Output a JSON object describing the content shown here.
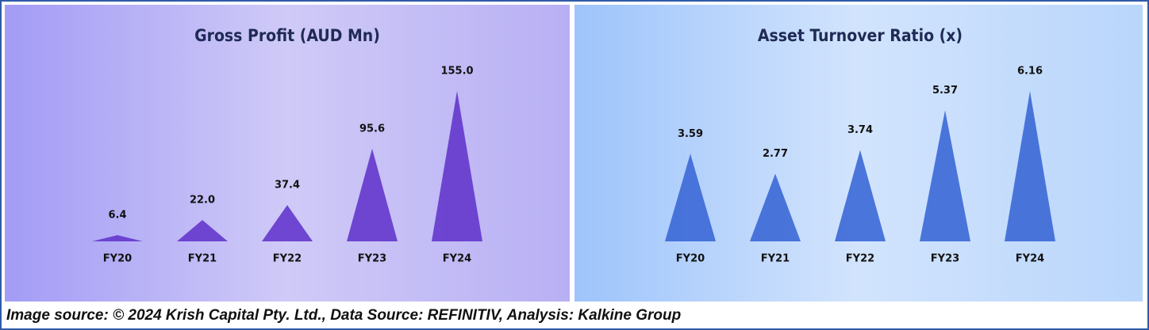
{
  "chart_data": [
    {
      "type": "triangle-bar",
      "title": "Gross Profit (AUD Mn)",
      "categories": [
        "FY20",
        "FY21",
        "FY22",
        "FY23",
        "FY24"
      ],
      "values": [
        6.4,
        22.0,
        37.4,
        95.6,
        155.0
      ],
      "value_labels": [
        "6.4",
        "22.0",
        "37.4",
        "95.6",
        "155.0"
      ],
      "color": "#6437cc"
    },
    {
      "type": "triangle-bar",
      "title": "Asset Turnover Ratio (x)",
      "categories": [
        "FY20",
        "FY21",
        "FY22",
        "FY23",
        "FY24"
      ],
      "values": [
        3.59,
        2.77,
        3.74,
        5.37,
        6.16
      ],
      "color": "#3b68d6"
    }
  ],
  "source": "Image source: © 2024 Krish Capital Pty. Ltd., Data Source: REFINITIV, Analysis: Kalkine Group"
}
